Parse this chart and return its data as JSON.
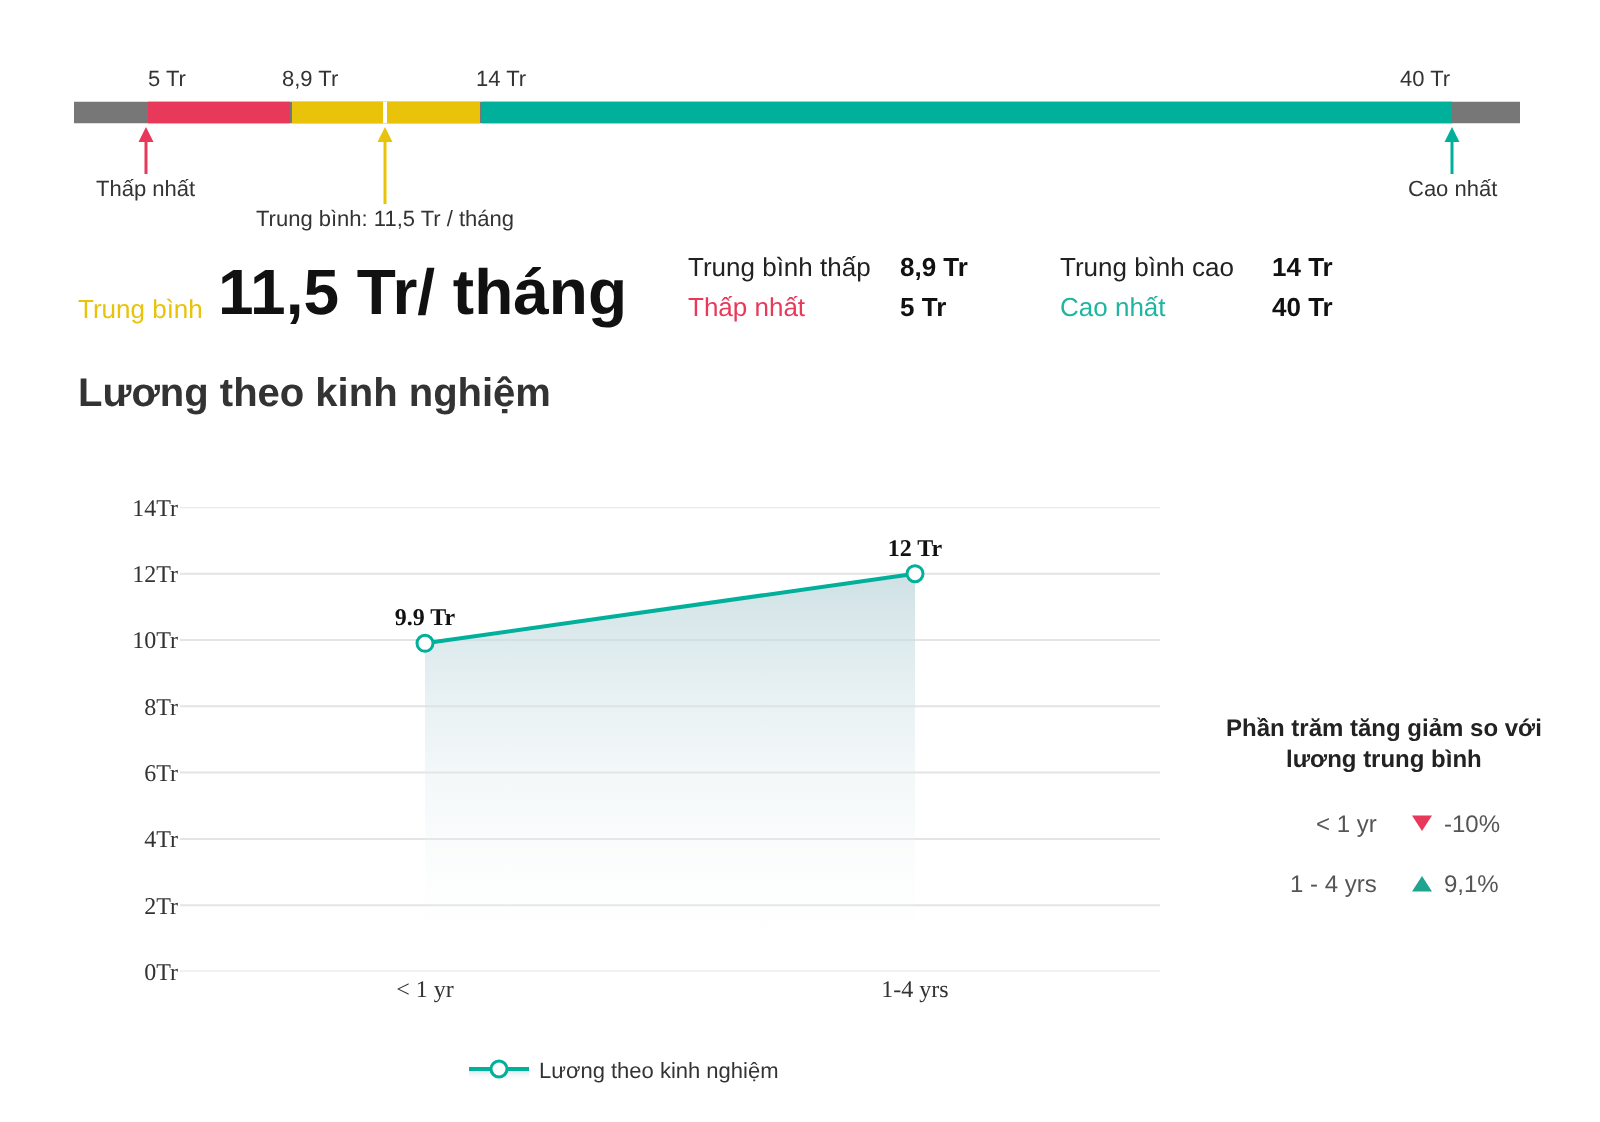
{
  "chart_data": [
    {
      "type": "other",
      "categories": [
        "5 Tr",
        "8,9 Tr",
        "14 Tr",
        "40 Tr"
      ],
      "colors": [
        "#e8395a",
        "#e8c30a",
        "#00b09b",
        "#777777"
      ],
      "annotations": [
        "Thấp nhất",
        "Trung bình: 11,5 Tr / tháng",
        "Cao nhất"
      ]
    },
    {
      "type": "other",
      "annotations": [
        "Trung bình",
        "11,5 Tr/ tháng",
        "Trung bình thấp",
        "8,9 Tr",
        "Thấp nhất",
        "5 Tr",
        "Trung bình cao",
        "14 Tr",
        "Cao nhất",
        "40 Tr"
      ],
      "colors": [
        "#e8c30a",
        "#111111",
        "#222222",
        "#111111",
        "#e8395a",
        "#111111",
        "#222222",
        "#111111",
        "#1fb5a0",
        "#111111"
      ]
    },
    {
      "type": "area",
      "title": "Lương theo kinh nghiệm",
      "categories": [
        "< 1 yr",
        "1-4 yrs"
      ],
      "series": [
        {
          "name": "Lương theo kinh nghiệm",
          "color": "#00b09b",
          "values": [
            9.9,
            12
          ],
          "value_labels": [
            "9.9 Tr",
            "12 Tr"
          ]
        }
      ],
      "ylim": [
        0,
        14
      ],
      "yticks": [
        {
          "value": 0,
          "label": "0Tr"
        },
        {
          "value": 2,
          "label": "2Tr"
        },
        {
          "value": 4,
          "label": "4Tr"
        },
        {
          "value": 6,
          "label": "6Tr"
        },
        {
          "value": 8,
          "label": "8Tr"
        },
        {
          "value": 10,
          "label": "10Tr"
        },
        {
          "value": 12,
          "label": "12Tr"
        },
        {
          "value": 14,
          "label": "14Tr"
        }
      ],
      "grid": "y",
      "legend": "bottom",
      "marker": "circle"
    },
    {
      "type": "other",
      "title": "Phần trăm tăng giảm so với lương trung bình",
      "categories": [
        "< 1 yr",
        "1 - 4 yrs"
      ],
      "value_labels": [
        "-10%",
        "9,1%"
      ],
      "colors": [
        "#e8395a",
        "#1fa58f"
      ]
    }
  ]
}
